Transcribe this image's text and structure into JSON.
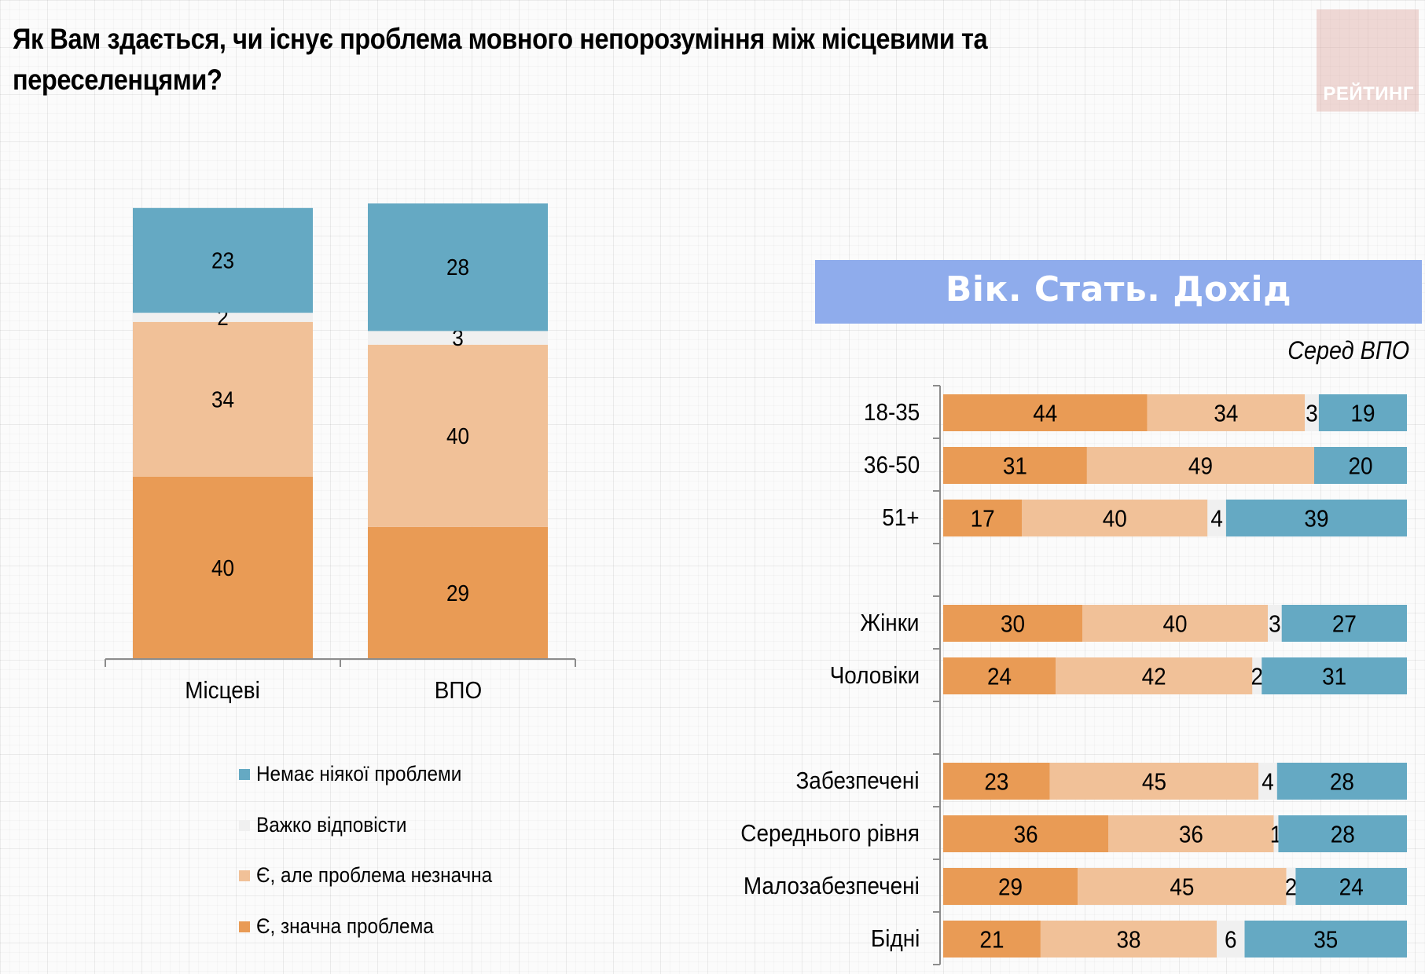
{
  "page": {
    "title": "Як Вам здається, чи існує проблема мовного непорозуміння між місцевими та переселенцями?",
    "logo_text": "РЕЙТИНГ"
  },
  "colors": {
    "no_problem": "#65a9c3",
    "hard_to_say": "#f0f0f0",
    "minor_problem": "#f1c198",
    "significant_problem": "#e99b55",
    "section_header": "#8facec"
  },
  "legend": [
    {
      "key": "no_problem",
      "label": "Немає ніякої проблеми"
    },
    {
      "key": "hard_to_say",
      "label": "Важко відповісти"
    },
    {
      "key": "minor_problem",
      "label": "Є, але проблема незначна"
    },
    {
      "key": "significant_problem",
      "label": "Є, значна проблема"
    }
  ],
  "right_panel": {
    "header": "Вік. Стать. Дохід",
    "subtitle": "Серед ВПО"
  },
  "chart_data": [
    {
      "type": "bar",
      "stacked": true,
      "orientation": "vertical",
      "title": "",
      "categories": [
        "Місцеві",
        "ВПО"
      ],
      "series": [
        {
          "name": "Є, значна проблема",
          "key": "significant_problem",
          "values": [
            40,
            29
          ]
        },
        {
          "name": "Є, але проблема незначна",
          "key": "minor_problem",
          "values": [
            34,
            40
          ]
        },
        {
          "name": "Важко відповісти",
          "key": "hard_to_say",
          "values": [
            2,
            3
          ]
        },
        {
          "name": "Немає ніякої проблеми",
          "key": "no_problem",
          "values": [
            23,
            28
          ]
        }
      ],
      "ylim": [
        0,
        100
      ],
      "grid": false,
      "data_labels": true,
      "legend_position": "bottom"
    },
    {
      "type": "bar",
      "stacked": true,
      "orientation": "horizontal",
      "title": "Вік. Стать. Дохід",
      "subtitle": "Серед ВПО",
      "groups": [
        {
          "categories": [
            "18-35",
            "36-50",
            "51+"
          ]
        },
        {
          "categories": [
            "Жінки",
            "Чоловіки"
          ]
        },
        {
          "categories": [
            "Забезпечені",
            "Середнього рівня",
            "Малозабезпечені",
            "Бідні"
          ]
        }
      ],
      "categories": [
        "18-35",
        "36-50",
        "51+",
        "Жінки",
        "Чоловіки",
        "Забезпечені",
        "Середнього рівня",
        "Малозабезпечені",
        "Бідні"
      ],
      "series": [
        {
          "name": "Є, значна проблема",
          "key": "significant_problem",
          "values": [
            44,
            31,
            17,
            30,
            24,
            23,
            36,
            29,
            21
          ]
        },
        {
          "name": "Є, але проблема незначна",
          "key": "minor_problem",
          "values": [
            34,
            49,
            40,
            40,
            42,
            45,
            36,
            45,
            38
          ]
        },
        {
          "name": "Важко відповісти",
          "key": "hard_to_say",
          "values": [
            3,
            0,
            4,
            3,
            2,
            4,
            1,
            2,
            6
          ]
        },
        {
          "name": "Немає ніякої проблеми",
          "key": "no_problem",
          "values": [
            19,
            20,
            39,
            27,
            31,
            28,
            28,
            24,
            35
          ]
        }
      ],
      "xlim": [
        0,
        100
      ],
      "grid": false,
      "data_labels": true
    }
  ]
}
